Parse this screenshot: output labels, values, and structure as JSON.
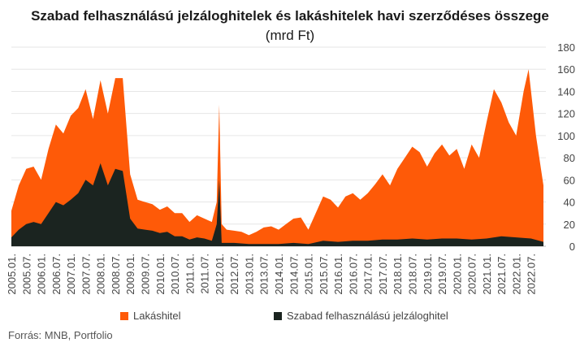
{
  "chart_data": {
    "type": "area",
    "title": "Szabad felhasználású jelzáloghitelek és lakáshitelek havi szerződéses összege",
    "subtitle": "(mrd Ft)",
    "ylim": [
      0,
      180
    ],
    "yticks": [
      0,
      20,
      40,
      60,
      80,
      100,
      120,
      140,
      160,
      180
    ],
    "x_start": "2005-01",
    "x_end": "2023-01",
    "xticks": [
      "2005.01.",
      "2005.07.",
      "2006.01.",
      "2006.07.",
      "2007.01.",
      "2007.07.",
      "2008.01.",
      "2008.07.",
      "2009.01.",
      "2009.07.",
      "2010.01.",
      "2010.07.",
      "2011.01.",
      "2011.07.",
      "2012.01.",
      "2012.07.",
      "2013.01.",
      "2013.07.",
      "2014.01.",
      "2014.07.",
      "2015.01.",
      "2015.07.",
      "2016.01.",
      "2016.07.",
      "2017.01.",
      "2017.07.",
      "2018.01.",
      "2018.07.",
      "2019.01.",
      "2019.07.",
      "2020.01.",
      "2020.07.",
      "2021.01.",
      "2021.07.",
      "2022.01.",
      "2022.07."
    ],
    "series": [
      {
        "name": "Lakáshitel",
        "color": "#fe5a08",
        "points": [
          [
            "2005-01",
            32
          ],
          [
            "2005-04",
            55
          ],
          [
            "2005-07",
            70
          ],
          [
            "2005-10",
            72
          ],
          [
            "2006-01",
            60
          ],
          [
            "2006-04",
            88
          ],
          [
            "2006-07",
            110
          ],
          [
            "2006-10",
            102
          ],
          [
            "2007-01",
            118
          ],
          [
            "2007-04",
            125
          ],
          [
            "2007-07",
            142
          ],
          [
            "2007-10",
            115
          ],
          [
            "2008-01",
            150
          ],
          [
            "2008-04",
            120
          ],
          [
            "2008-07",
            152
          ],
          [
            "2008-10",
            152
          ],
          [
            "2009-01",
            65
          ],
          [
            "2009-04",
            42
          ],
          [
            "2009-07",
            40
          ],
          [
            "2009-10",
            38
          ],
          [
            "2010-01",
            33
          ],
          [
            "2010-04",
            36
          ],
          [
            "2010-07",
            30
          ],
          [
            "2010-10",
            30
          ],
          [
            "2011-01",
            22
          ],
          [
            "2011-04",
            28
          ],
          [
            "2011-07",
            25
          ],
          [
            "2011-10",
            22
          ],
          [
            "2011-12",
            40
          ],
          [
            "2012-01",
            128
          ],
          [
            "2012-02",
            20
          ],
          [
            "2012-04",
            15
          ],
          [
            "2012-07",
            14
          ],
          [
            "2012-10",
            13
          ],
          [
            "2013-01",
            10
          ],
          [
            "2013-04",
            13
          ],
          [
            "2013-07",
            17
          ],
          [
            "2013-10",
            18
          ],
          [
            "2014-01",
            15
          ],
          [
            "2014-04",
            20
          ],
          [
            "2014-07",
            25
          ],
          [
            "2014-10",
            26
          ],
          [
            "2015-01",
            15
          ],
          [
            "2015-04",
            30
          ],
          [
            "2015-07",
            45
          ],
          [
            "2015-10",
            42
          ],
          [
            "2016-01",
            35
          ],
          [
            "2016-04",
            45
          ],
          [
            "2016-07",
            48
          ],
          [
            "2016-10",
            42
          ],
          [
            "2017-01",
            48
          ],
          [
            "2017-04",
            56
          ],
          [
            "2017-07",
            65
          ],
          [
            "2017-10",
            55
          ],
          [
            "2018-01",
            70
          ],
          [
            "2018-04",
            80
          ],
          [
            "2018-07",
            90
          ],
          [
            "2018-10",
            85
          ],
          [
            "2019-01",
            72
          ],
          [
            "2019-04",
            84
          ],
          [
            "2019-07",
            92
          ],
          [
            "2019-10",
            82
          ],
          [
            "2020-01",
            88
          ],
          [
            "2020-04",
            70
          ],
          [
            "2020-07",
            92
          ],
          [
            "2020-10",
            80
          ],
          [
            "2021-01",
            112
          ],
          [
            "2021-04",
            142
          ],
          [
            "2021-07",
            130
          ],
          [
            "2021-10",
            112
          ],
          [
            "2022-01",
            100
          ],
          [
            "2022-04",
            140
          ],
          [
            "2022-06",
            160
          ],
          [
            "2022-09",
            100
          ],
          [
            "2022-12",
            55
          ]
        ]
      },
      {
        "name": "Szabad felhasználású jelzáloghitel",
        "color": "#1b2420",
        "points": [
          [
            "2005-01",
            8
          ],
          [
            "2005-04",
            15
          ],
          [
            "2005-07",
            20
          ],
          [
            "2005-10",
            22
          ],
          [
            "2006-01",
            20
          ],
          [
            "2006-04",
            30
          ],
          [
            "2006-07",
            40
          ],
          [
            "2006-10",
            37
          ],
          [
            "2007-01",
            42
          ],
          [
            "2007-04",
            48
          ],
          [
            "2007-07",
            60
          ],
          [
            "2007-10",
            55
          ],
          [
            "2008-01",
            75
          ],
          [
            "2008-04",
            55
          ],
          [
            "2008-07",
            70
          ],
          [
            "2008-10",
            68
          ],
          [
            "2009-01",
            25
          ],
          [
            "2009-04",
            16
          ],
          [
            "2009-07",
            15
          ],
          [
            "2009-10",
            14
          ],
          [
            "2010-01",
            12
          ],
          [
            "2010-04",
            13
          ],
          [
            "2010-07",
            9
          ],
          [
            "2010-10",
            9
          ],
          [
            "2011-01",
            6
          ],
          [
            "2011-04",
            8
          ],
          [
            "2011-07",
            7
          ],
          [
            "2011-10",
            5
          ],
          [
            "2011-12",
            20
          ],
          [
            "2012-01",
            60
          ],
          [
            "2012-02",
            3
          ],
          [
            "2012-07",
            3
          ],
          [
            "2013-01",
            2
          ],
          [
            "2013-07",
            2
          ],
          [
            "2014-01",
            2
          ],
          [
            "2014-07",
            3
          ],
          [
            "2015-01",
            2
          ],
          [
            "2015-07",
            5
          ],
          [
            "2016-01",
            4
          ],
          [
            "2016-07",
            5
          ],
          [
            "2017-01",
            5
          ],
          [
            "2017-07",
            6
          ],
          [
            "2018-01",
            6
          ],
          [
            "2018-07",
            7
          ],
          [
            "2019-01",
            6
          ],
          [
            "2019-07",
            7
          ],
          [
            "2020-01",
            7
          ],
          [
            "2020-07",
            6
          ],
          [
            "2021-01",
            7
          ],
          [
            "2021-07",
            9
          ],
          [
            "2022-01",
            8
          ],
          [
            "2022-07",
            7
          ],
          [
            "2022-12",
            4
          ]
        ]
      }
    ],
    "legend_position": "bottom"
  },
  "source": "Forrás: MNB, Portfolio"
}
